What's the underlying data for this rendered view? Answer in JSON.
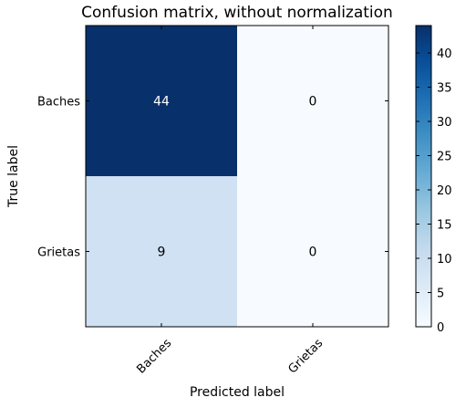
{
  "chart_data": {
    "type": "heatmap",
    "title": "Confusion matrix, without normalization",
    "xlabel": "Predicted label",
    "ylabel": "True label",
    "x_categories": [
      "Baches",
      "Grietas"
    ],
    "y_categories": [
      "Baches",
      "Grietas"
    ],
    "values": [
      [
        44,
        0
      ],
      [
        9,
        0
      ]
    ],
    "colormap": "Blues",
    "color_range": [
      0,
      44
    ],
    "colorbar_ticks": [
      0,
      5,
      10,
      15,
      20,
      25,
      30,
      35,
      40
    ],
    "grid": false,
    "colors": {
      "low": "#f7fbff",
      "high": "#08306b",
      "text_on_dark": "#ffffff",
      "text_on_light": "#000000"
    }
  }
}
